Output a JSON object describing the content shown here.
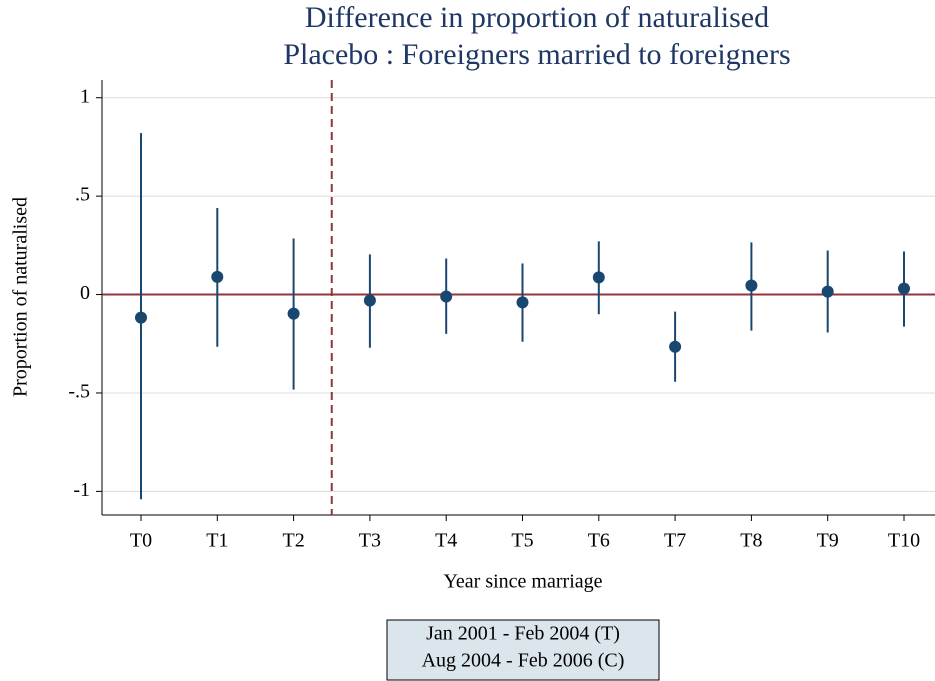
{
  "chart_data": {
    "type": "ci-dot",
    "title": [
      "Difference in proportion of naturalised",
      "Placebo : Foreigners married to foreigners"
    ],
    "y_label": "Proportion of naturalised",
    "x_label": "Year since marriage",
    "note": [
      "Jan 2001 - Feb 2004 (T)",
      "Aug 2004 - Feb 2006 (C)"
    ],
    "categories": [
      "T0",
      "T1",
      "T2",
      "T3",
      "T4",
      "T5",
      "T6",
      "T7",
      "T8",
      "T9",
      "T10"
    ],
    "values": [
      -0.117,
      0.09,
      -0.097,
      -0.03,
      -0.01,
      -0.04,
      0.087,
      -0.265,
      0.046,
      0.015,
      0.03
    ],
    "lower": [
      -1.04,
      -0.265,
      -0.483,
      -0.27,
      -0.2,
      -0.24,
      -0.1,
      -0.443,
      -0.183,
      -0.193,
      -0.163
    ],
    "upper": [
      0.82,
      0.44,
      0.285,
      0.204,
      0.183,
      0.158,
      0.27,
      -0.087,
      0.265,
      0.224,
      0.219
    ],
    "color": "#1a476f",
    "reference_color": "#90353b",
    "hline": 0,
    "vline": 2.5,
    "ylim": [
      -1.12,
      1.09
    ],
    "yticks": [
      1,
      {
        "value": 0.5,
        "label": ".5"
      },
      0,
      {
        "value": -0.5,
        "label": "-.5"
      },
      -1
    ],
    "grid": true
  }
}
